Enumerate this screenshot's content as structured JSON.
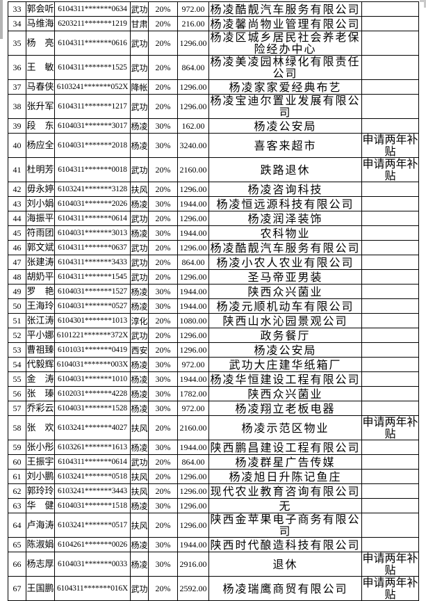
{
  "page": {
    "background_color": "#ffffff",
    "grid_color": "#000000",
    "text_color": "#000000",
    "visible_row_range": "33-67"
  },
  "table": {
    "rows": [
      {
        "no": "33",
        "name": "郭会听",
        "id": "6104311*******0634",
        "origin": "武功",
        "rate": "20%",
        "amount": "972.00",
        "employer": "杨凌酷靓汽车服务有限公司",
        "note": ""
      },
      {
        "no": "34",
        "name": "马维海",
        "id": "6203211*******1219",
        "origin": "甘肃",
        "rate": "20%",
        "amount": "216.00",
        "employer": "杨凌馨尚物业管理有限公司",
        "note": ""
      },
      {
        "no": "35",
        "name": "杨　亮",
        "id": "6104311*******0616",
        "origin": "武功",
        "rate": "20%",
        "amount": "1296.00",
        "employer": "杨凌区城乡居民社会养老保险经办中心",
        "note": ""
      },
      {
        "no": "36",
        "name": "王　敏",
        "id": "6104311*******1525",
        "origin": "武功",
        "rate": "20%",
        "amount": "864.00",
        "employer": "杨凌美凌园林绿化有限责任公司",
        "note": ""
      },
      {
        "no": "37",
        "name": "马春侠",
        "id": "6103241*******052X",
        "origin": "降帐",
        "rate": "20%",
        "amount": "1296.00",
        "employer": "杨凌家家爱经典布艺",
        "note": ""
      },
      {
        "no": "38",
        "name": "张升军",
        "id": "6104311*******1217",
        "origin": "武功",
        "rate": "20%",
        "amount": "1296.00",
        "employer": "杨凌宝迪尔置业发展有限公司",
        "note": ""
      },
      {
        "no": "39",
        "name": "段　东",
        "id": "6104031*******3017",
        "origin": "杨凌",
        "rate": "30%",
        "amount": "162.00",
        "employer": "杨凌公安局",
        "note": ""
      },
      {
        "no": "40",
        "name": "杨应全",
        "id": "6104031*******2018",
        "origin": "杨凌",
        "rate": "30%",
        "amount": "3240.00",
        "employer": "喜客来超市",
        "note": "申请两年补贴"
      },
      {
        "no": "41",
        "name": "杜明芳",
        "id": "6104311*******0018",
        "origin": "武功",
        "rate": "20%",
        "amount": "2160.00",
        "employer": "跌路退休",
        "note": "申请两年补贴"
      },
      {
        "no": "42",
        "name": "毋永婷",
        "id": "6103241*******3128",
        "origin": "扶风",
        "rate": "20%",
        "amount": "1296.00",
        "employer": "杨凌咨询科技",
        "note": ""
      },
      {
        "no": "43",
        "name": "刘小娟",
        "id": "6104031*******2026",
        "origin": "杨凌",
        "rate": "30%",
        "amount": "1944.00",
        "employer": "杨凌恒远源科技有限公司",
        "note": ""
      },
      {
        "no": "44",
        "name": "海振平",
        "id": "6104311*******0614",
        "origin": "武功",
        "rate": "20%",
        "amount": "1296.00",
        "employer": "杨凌润泽装饰",
        "note": ""
      },
      {
        "no": "45",
        "name": "符雨团",
        "id": "6104031*******3013",
        "origin": "杨凌",
        "rate": "30%",
        "amount": "1944.00",
        "employer": "农科物业",
        "note": ""
      },
      {
        "no": "46",
        "name": "郭文斌",
        "id": "6104311*******0637",
        "origin": "武功",
        "rate": "20%",
        "amount": "1296.00",
        "employer": "杨凌酷靓汽车服务有限公司",
        "note": ""
      },
      {
        "no": "47",
        "name": "张建涛",
        "id": "6104311*******3433",
        "origin": "武功",
        "rate": "20%",
        "amount": "864.00",
        "employer": "杨凌小农人农业有限公司",
        "note": ""
      },
      {
        "no": "48",
        "name": "胡奶平",
        "id": "6104311*******1545",
        "origin": "武功",
        "rate": "20%",
        "amount": "1296.00",
        "employer": "圣马帝亚男装",
        "note": ""
      },
      {
        "no": "49",
        "name": "罗　艳",
        "id": "6104031*******1527",
        "origin": "杨凌",
        "rate": "30%",
        "amount": "1944.00",
        "employer": "陕西众兴菌业",
        "note": ""
      },
      {
        "no": "50",
        "name": "王海玲",
        "id": "6104031*******0527",
        "origin": "杨凌",
        "rate": "30%",
        "amount": "1944.00",
        "employer": "杨凌元顺机动车有限公司",
        "note": ""
      },
      {
        "no": "51",
        "name": "张江涛",
        "id": "6104301*******1013",
        "origin": "淳化",
        "rate": "20%",
        "amount": "1080.00",
        "employer": "陕西山水沁园景观公司",
        "note": ""
      },
      {
        "no": "52",
        "name": "平小娜",
        "id": "6101221*******372X",
        "origin": "武功",
        "rate": "20%",
        "amount": "1296.00",
        "employer": "政务餐厅",
        "note": ""
      },
      {
        "no": "53",
        "name": "曹祖臻",
        "id": "6101031*******0419",
        "origin": "西安",
        "rate": "20%",
        "amount": "1296.00",
        "employer": "杨凌公安局",
        "note": ""
      },
      {
        "no": "54",
        "name": "代毅辉",
        "id": "6104031*******003X",
        "origin": "杨凌",
        "rate": "30%",
        "amount": "972.00",
        "employer": "武功大庄建华纸箱厂",
        "note": ""
      },
      {
        "no": "55",
        "name": "金　涛",
        "id": "6104031*******1010",
        "origin": "杨凌",
        "rate": "30%",
        "amount": "1944.00",
        "employer": "杨凌华恒建设工程有限公司",
        "note": ""
      },
      {
        "no": "56",
        "name": "张　瑧",
        "id": "6102031*******4228",
        "origin": "杨凌",
        "rate": "30%",
        "amount": "1782.00",
        "employer": "陕西众兴菌业",
        "note": ""
      },
      {
        "no": "57",
        "name": "乔彩云",
        "id": "6104031*******1528",
        "origin": "杨凌",
        "rate": "30%",
        "amount": "972.00",
        "employer": "杨凌翔立老板电器",
        "note": ""
      },
      {
        "no": "58",
        "name": "张　欢",
        "id": "6103241*******4027",
        "origin": "扶风",
        "rate": "20%",
        "amount": "2160.00",
        "employer": "杨凌示范区物业",
        "note": "申请两年补贴"
      },
      {
        "no": "59",
        "name": "张小彤",
        "id": "6103261*******1613",
        "origin": "杨凌",
        "rate": "30%",
        "amount": "1944.00",
        "employer": "陕西鹏昌建设工程有限公司",
        "note": ""
      },
      {
        "no": "60",
        "name": "王振宇",
        "id": "6104311*******0614",
        "origin": "武功",
        "rate": "20%",
        "amount": "864.00",
        "employer": "杨凌群星广告传媒",
        "note": ""
      },
      {
        "no": "61",
        "name": "刘小鹏",
        "id": "6103241*******0518",
        "origin": "扶风",
        "rate": "20%",
        "amount": "1296.00",
        "employer": "杨凌旭日升陈记鱼庄",
        "note": ""
      },
      {
        "no": "62",
        "name": "郭玲玲",
        "id": "6103241*******3443",
        "origin": "扶风",
        "rate": "20%",
        "amount": "1296.00",
        "employer": "现代农业教育咨询有限公司",
        "note": ""
      },
      {
        "no": "63",
        "name": "华　健",
        "id": "6104031*******1518",
        "origin": "杨凌",
        "rate": "30%",
        "amount": "1296.00",
        "employer": "无",
        "note": ""
      },
      {
        "no": "64",
        "name": "卢海涛",
        "id": "6103241*******0517",
        "origin": "扶风",
        "rate": "20%",
        "amount": "1296.00",
        "employer": "陕西金苹果电子商务有限公司",
        "note": ""
      },
      {
        "no": "65",
        "name": "陈淑娟",
        "id": "6104261*******0026",
        "origin": "杨凌",
        "rate": "30%",
        "amount": "1944.00",
        "employer": "陕西时代酿造科技有限公司",
        "note": ""
      },
      {
        "no": "66",
        "name": "杨志厚",
        "id": "6104031*******0033",
        "origin": "杨凌",
        "rate": "30%",
        "amount": "2916.00",
        "employer": "退休",
        "note": "申请两年补贴"
      },
      {
        "no": "67",
        "name": "王国鹏",
        "id": "6104311*******016X",
        "origin": "武功",
        "rate": "20%",
        "amount": "2592.00",
        "employer": "杨凌瑞鹰商贸有限公司",
        "note": "申请两年补贴"
      }
    ]
  }
}
